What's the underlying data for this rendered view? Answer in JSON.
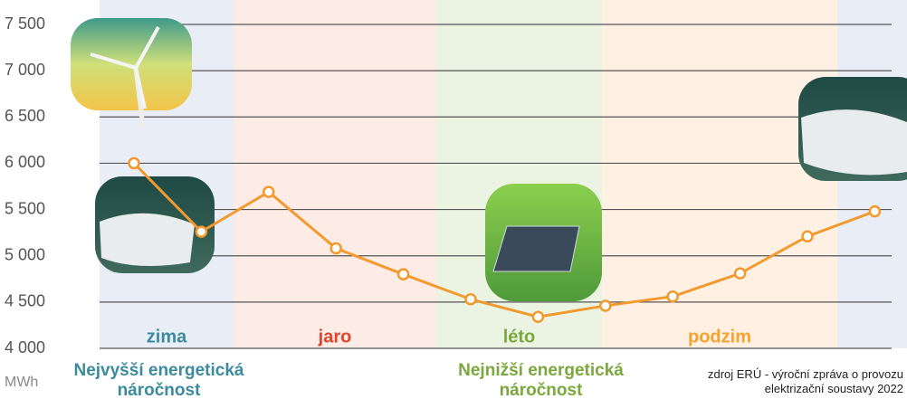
{
  "chart_data": {
    "type": "line",
    "categories": [
      null,
      null,
      null,
      null,
      null,
      null,
      null,
      null,
      null,
      null,
      null,
      null
    ],
    "series": [
      {
        "color": "#f39a2e",
        "values": [
          6000,
          5260,
          5690,
          5080,
          4800,
          4530,
          4340,
          4460,
          4560,
          4810,
          5210,
          5480
        ]
      }
    ],
    "ylim": [
      4000,
      7500
    ],
    "yticks": [
      {
        "value": 4000,
        "label": "4 000"
      },
      {
        "value": 4500,
        "label": "4 500"
      },
      {
        "value": 5000,
        "label": "5 000"
      },
      {
        "value": 5500,
        "label": "5 500"
      },
      {
        "value": 6000,
        "label": "6 000"
      },
      {
        "value": 6500,
        "label": "6 500"
      },
      {
        "value": 7000,
        "label": "7 000"
      },
      {
        "value": 7500,
        "label": "7 500"
      }
    ],
    "grid": true,
    "y_unit": "MWh",
    "seasons": [
      {
        "name": "zima",
        "color": "#3c8a9e"
      },
      {
        "name": "jaro",
        "color": "#e2442b"
      },
      {
        "name": "léto",
        "color": "#7aa83c"
      },
      {
        "name": "podzim",
        "color": "#f5a22f"
      }
    ],
    "annotations": [
      "Nejvyšší energetická náročnost",
      "Nejnižší energetická náročnost"
    ],
    "source": "zdroj ERÚ - výroční zpráva o provozu elektrizační soustavy 2022"
  }
}
